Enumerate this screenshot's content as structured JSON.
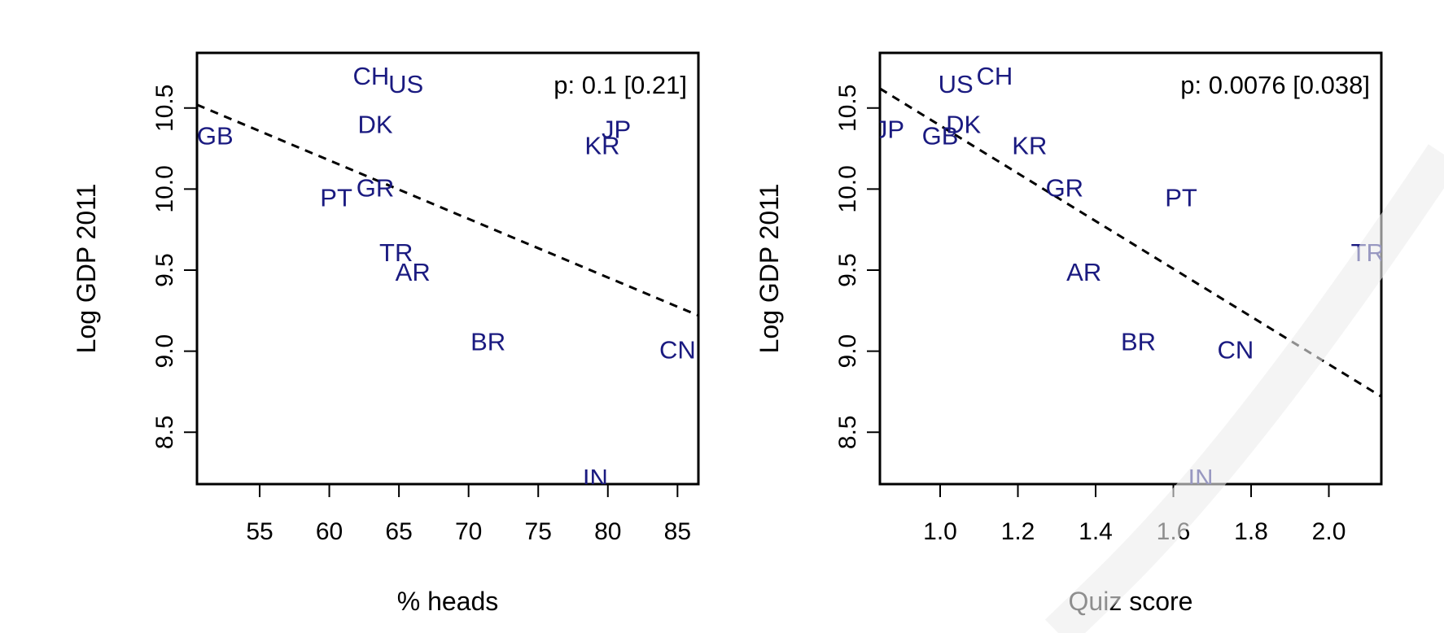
{
  "chart_data": [
    {
      "type": "scatter",
      "xlabel": "% heads",
      "ylabel": "Log GDP 2011",
      "annotation": "p: 0.1 [0.21]",
      "xlim": [
        50.5,
        86.5
      ],
      "ylim": [
        8.18,
        10.84
      ],
      "xticks": [
        "55",
        "60",
        "65",
        "70",
        "75",
        "80",
        "85"
      ],
      "xtick_values": [
        55,
        60,
        65,
        70,
        75,
        80,
        85
      ],
      "yticks": [
        "8.5",
        "9.0",
        "9.5",
        "10.0",
        "10.5"
      ],
      "ytick_values": [
        8.5,
        9.0,
        9.5,
        10.0,
        10.5
      ],
      "points": [
        {
          "label": "CH",
          "x": 63.0,
          "y": 10.7
        },
        {
          "label": "US",
          "x": 65.5,
          "y": 10.65
        },
        {
          "label": "GB",
          "x": 51.8,
          "y": 10.33
        },
        {
          "label": "DK",
          "x": 63.3,
          "y": 10.4
        },
        {
          "label": "JP",
          "x": 80.6,
          "y": 10.37
        },
        {
          "label": "KR",
          "x": 79.6,
          "y": 10.27
        },
        {
          "label": "GR",
          "x": 63.3,
          "y": 10.01
        },
        {
          "label": "PT",
          "x": 60.5,
          "y": 9.95
        },
        {
          "label": "TR",
          "x": 64.8,
          "y": 9.61
        },
        {
          "label": "AR",
          "x": 66.0,
          "y": 9.49
        },
        {
          "label": "BR",
          "x": 71.4,
          "y": 9.06
        },
        {
          "label": "CN",
          "x": 85.0,
          "y": 9.01
        },
        {
          "label": "IN",
          "x": 79.1,
          "y": 8.22
        }
      ],
      "fit_line": {
        "x": [
          50.5,
          86.5
        ],
        "y": [
          10.52,
          9.22
        ],
        "style": "dashed"
      }
    },
    {
      "type": "scatter",
      "xlabel": "Quiz score",
      "ylabel": "Log GDP 2011",
      "annotation": "p: 0.0076 [0.038]",
      "xlim": [
        0.845,
        2.135
      ],
      "ylim": [
        8.18,
        10.84
      ],
      "xticks": [
        "1.0",
        "1.2",
        "1.4",
        "1.6",
        "1.8",
        "2.0"
      ],
      "xtick_values": [
        1.0,
        1.2,
        1.4,
        1.6,
        1.8,
        2.0
      ],
      "yticks": [
        "8.5",
        "9.0",
        "9.5",
        "10.0",
        "10.5"
      ],
      "ytick_values": [
        8.5,
        9.0,
        9.5,
        10.0,
        10.5
      ],
      "points": [
        {
          "label": "US",
          "x": 1.04,
          "y": 10.65
        },
        {
          "label": "CH",
          "x": 1.14,
          "y": 10.7
        },
        {
          "label": "JP",
          "x": 0.87,
          "y": 10.37
        },
        {
          "label": "DK",
          "x": 1.06,
          "y": 10.4
        },
        {
          "label": "GB",
          "x": 1.0,
          "y": 10.33
        },
        {
          "label": "KR",
          "x": 1.23,
          "y": 10.27
        },
        {
          "label": "GR",
          "x": 1.32,
          "y": 10.01
        },
        {
          "label": "PT",
          "x": 1.62,
          "y": 9.95
        },
        {
          "label": "TR",
          "x": 2.1,
          "y": 9.61
        },
        {
          "label": "AR",
          "x": 1.37,
          "y": 9.49
        },
        {
          "label": "BR",
          "x": 1.51,
          "y": 9.06
        },
        {
          "label": "CN",
          "x": 1.76,
          "y": 9.01
        },
        {
          "label": "IN",
          "x": 1.67,
          "y": 8.22
        }
      ],
      "fit_line": {
        "x": [
          0.845,
          2.135
        ],
        "y": [
          10.62,
          8.72
        ],
        "style": "dashed"
      }
    }
  ],
  "colors": {
    "point_label": "#1a1a80",
    "axis": "#000000",
    "fit_line": "#000000",
    "watermark": "#e6e6e6"
  }
}
